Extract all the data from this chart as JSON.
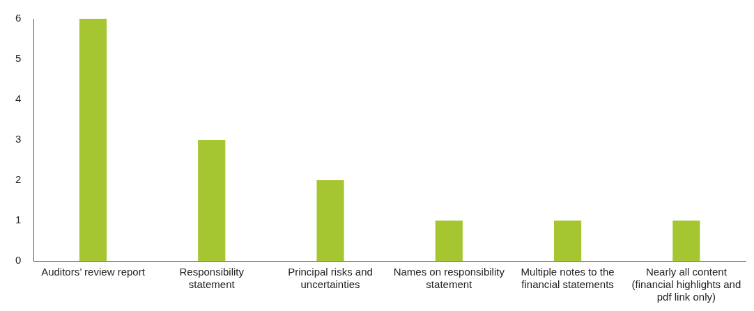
{
  "chart_data": {
    "type": "bar",
    "categories": [
      "Auditors’ review report",
      "Responsibility statement",
      "Principal risks and uncertainties",
      "Names on responsibility statement",
      "Multiple notes to the financial statements",
      "Nearly all content (financial highlights and pdf link only)"
    ],
    "values": [
      6,
      3,
      2,
      1,
      1,
      1
    ],
    "color": "#a5c630",
    "ylim": [
      0,
      6
    ],
    "yticks": [
      0,
      1,
      2,
      3,
      4,
      5,
      6
    ],
    "grid": false,
    "legend": false
  }
}
